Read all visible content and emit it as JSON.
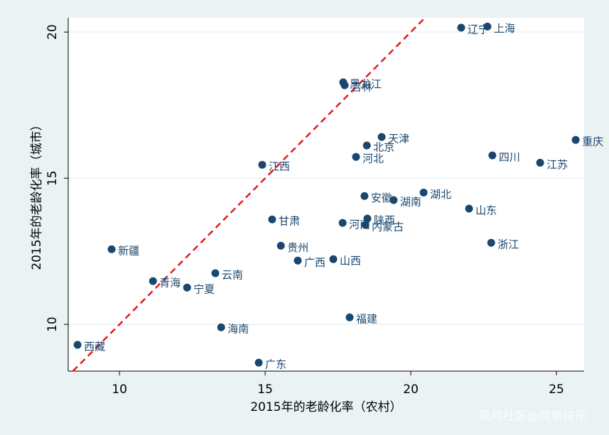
{
  "chart_data": {
    "type": "scatter",
    "x_label": "2015年的老龄化率（农村）",
    "y_label": "2015年的老龄化率（城市）",
    "labels": [
      "辽宁",
      "上海",
      "黑龙江",
      "吉林",
      "天津",
      "北京",
      "河北",
      "江西",
      "重庆",
      "四川",
      "江苏",
      "湖北",
      "安徽",
      "湖南",
      "山东",
      "甘肃",
      "陕西",
      "河南",
      "内蒙古",
      "新疆",
      "贵州",
      "浙江",
      "广西",
      "山西",
      "云南",
      "青海",
      "宁夏",
      "福建",
      "海南",
      "西藏",
      "广东"
    ],
    "x": [
      21.73,
      22.63,
      17.68,
      17.73,
      19.0,
      18.49,
      18.12,
      14.9,
      25.66,
      22.8,
      24.44,
      20.44,
      18.41,
      19.41,
      22.0,
      15.24,
      18.51,
      17.66,
      18.44,
      9.73,
      15.54,
      22.76,
      16.12,
      17.34,
      13.29,
      11.15,
      12.32,
      17.9,
      13.49,
      8.56,
      14.78
    ],
    "values": [
      20.15,
      20.19,
      18.28,
      18.18,
      16.41,
      16.12,
      15.73,
      15.46,
      16.31,
      15.78,
      15.53,
      14.51,
      14.39,
      14.25,
      13.96,
      13.59,
      13.62,
      13.47,
      13.4,
      12.57,
      12.69,
      12.79,
      12.18,
      12.23,
      11.75,
      11.48,
      11.26,
      10.24,
      9.9,
      9.3,
      8.69
    ],
    "color": "#1a476f",
    "identity_line": {
      "color": "#e31a1c",
      "dashed": true
    },
    "xlim": [
      8.24,
      25.95
    ],
    "ylim": [
      8.4,
      20.49
    ],
    "xticks": [
      10,
      15,
      20,
      25
    ],
    "yticks": [
      10,
      15,
      20
    ],
    "grid": true,
    "watermark": "风闻社区@简单快乐"
  }
}
